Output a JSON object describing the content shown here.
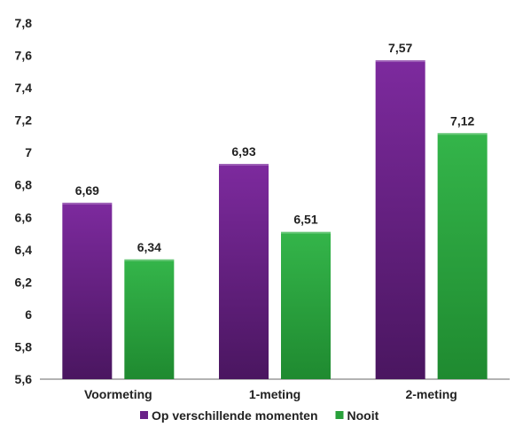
{
  "chart_data": {
    "type": "bar",
    "categories": [
      "Voormeting",
      "1-meting",
      "2-meting"
    ],
    "series": [
      {
        "name": "Op verschillende momenten",
        "values": [
          6.69,
          6.93,
          7.57
        ],
        "labels": [
          "6,69",
          "6,93",
          "7,57"
        ],
        "color": "#6a2288"
      },
      {
        "name": "Nooit",
        "values": [
          6.34,
          6.51,
          7.12
        ],
        "labels": [
          "6,34",
          "6,51",
          "7,12"
        ],
        "color": "#28a03a"
      }
    ],
    "ylim": [
      5.6,
      7.8
    ],
    "yticks": [
      5.6,
      5.8,
      6.0,
      6.2,
      6.4,
      6.6,
      6.8,
      7.0,
      7.2,
      7.4,
      7.6,
      7.8
    ],
    "ytick_labels": [
      "5,6",
      "5,8",
      "6",
      "6,2",
      "6,4",
      "6,6",
      "6,8",
      "7",
      "7,2",
      "7,4",
      "7,6",
      "7,8"
    ],
    "legend_position": "bottom",
    "grid": false
  }
}
